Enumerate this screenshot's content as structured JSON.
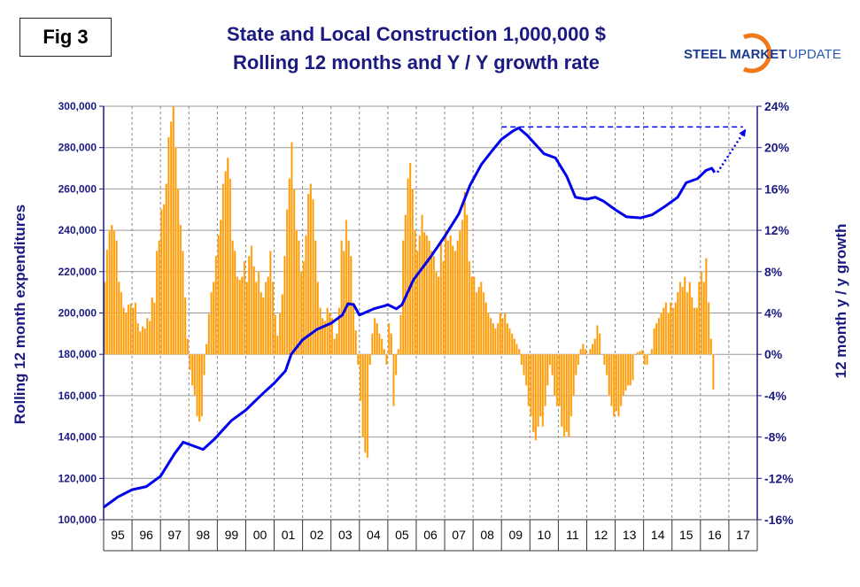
{
  "fig_label": "Fig 3",
  "logo_text": {
    "part1": "STEEL MARKET",
    "part2": "UPDATE"
  },
  "chart_data": {
    "type": "bar+line",
    "title": [
      "State and Local Construction 1,000,000 $",
      "Rolling 12 months and Y / Y growth rate"
    ],
    "ylabel_left": "Rolling 12 month expenditures",
    "ylabel_right": "12 month y / y growth",
    "ylim_left": [
      100000,
      300000
    ],
    "ylim_right": [
      -16,
      24
    ],
    "yticks_left": [
      "100,000",
      "120,000",
      "140,000",
      "160,000",
      "180,000",
      "200,000",
      "220,000",
      "240,000",
      "260,000",
      "280,000",
      "300,000"
    ],
    "yticks_right": [
      "-16%",
      "-12%",
      "-8%",
      "-4%",
      "0%",
      "4%",
      "8%",
      "12%",
      "16%",
      "20%",
      "24%"
    ],
    "xticks": [
      "95",
      "96",
      "97",
      "98",
      "99",
      "00",
      "01",
      "02",
      "03",
      "04",
      "05",
      "06",
      "07",
      "08",
      "09",
      "10",
      "11",
      "12",
      "13",
      "14",
      "15",
      "16",
      "17"
    ],
    "grid": true,
    "growth_series": {
      "name": "12 month y/y growth (%)",
      "start": "1995-01",
      "color": "#FF9900",
      "values": [
        7,
        10.1,
        12,
        12.5,
        12,
        11,
        7,
        6,
        4.5,
        4,
        4.8,
        4.9,
        4.5,
        5,
        3,
        2.2,
        2.7,
        2.5,
        3.5,
        3.2,
        5.5,
        5,
        10,
        11,
        14,
        14.5,
        16.5,
        21,
        22.5,
        24,
        20,
        16,
        12.5,
        10,
        5.5,
        1.5,
        -1.5,
        -3,
        -4,
        -6,
        -6.5,
        -6,
        -2,
        1,
        3.9,
        6,
        7,
        9.5,
        11.5,
        13,
        16.5,
        17.7,
        19,
        17,
        11,
        10,
        7.5,
        7.2,
        7.5,
        9,
        7,
        9.5,
        10.5,
        8.5,
        7,
        8,
        6,
        5.5,
        7,
        7.5,
        10,
        7,
        3.8,
        1.8,
        4,
        5.8,
        9.5,
        14,
        17,
        20.5,
        16,
        12,
        11,
        8,
        9,
        11.5,
        15.5,
        16.5,
        15,
        11,
        7,
        4.5,
        3.5,
        3.2,
        4.5,
        4,
        3.5,
        1.5,
        2,
        4.5,
        11,
        10,
        13,
        11,
        9.5,
        5,
        2.3,
        -1,
        -4.5,
        -8,
        -9.5,
        -10,
        -1,
        2,
        3.5,
        3,
        2,
        1.5,
        0.5,
        -1,
        3,
        2,
        -5,
        -2,
        0.5,
        3.8,
        11,
        13.5,
        17,
        18.5,
        16,
        12,
        10,
        11.5,
        13.5,
        11.8,
        11.5,
        11,
        10,
        9.5,
        8,
        7.5,
        11,
        9,
        12,
        11,
        11.5,
        10.5,
        10,
        11,
        12,
        13,
        15.7,
        13.5,
        9,
        7.5,
        7.5,
        6,
        6.5,
        7,
        6,
        5,
        4,
        3.5,
        3,
        2.5,
        3,
        4,
        3.5,
        4,
        3,
        2.5,
        2,
        1.5,
        1,
        0.5,
        -1,
        -2,
        -3,
        -5,
        -6,
        -7.5,
        -8.3,
        -7,
        -6,
        -7,
        -5,
        -3,
        -1,
        -2,
        -4,
        -5,
        -5,
        -7,
        -8,
        -7.5,
        -8,
        -6,
        -4,
        -2,
        -1,
        0.5,
        1,
        0.5,
        0,
        0.5,
        1,
        1.5,
        2.8,
        2,
        0,
        -1,
        -2,
        -4,
        -5,
        -6,
        -5.5,
        -6,
        -5,
        -4,
        -3.5,
        -3,
        -3,
        -2.5,
        0,
        0.2,
        0.3,
        0.4,
        -1,
        -1,
        0,
        0.5,
        2.5,
        3,
        3.5,
        4,
        4.5,
        5,
        4,
        5,
        4.5,
        5,
        6,
        7,
        6.5,
        7.5,
        6,
        7,
        5.5,
        4.5,
        4.5,
        7,
        8,
        7,
        9.3,
        5,
        1.5,
        -3.4
      ]
    },
    "rolling_series": {
      "name": "Rolling 12 months ($M)",
      "color": "#0000EE",
      "points": [
        [
          1995.0,
          106000
        ],
        [
          1995.5,
          111000
        ],
        [
          1996.0,
          114500
        ],
        [
          1996.5,
          116000
        ],
        [
          1997.0,
          121000
        ],
        [
          1997.5,
          132000
        ],
        [
          1997.8,
          137500
        ],
        [
          1998.3,
          135000
        ],
        [
          1998.5,
          134000
        ],
        [
          1998.9,
          139000
        ],
        [
          1999.5,
          148000
        ],
        [
          2000.0,
          153000
        ],
        [
          2000.6,
          161000
        ],
        [
          2001.0,
          166000
        ],
        [
          2001.4,
          172000
        ],
        [
          2001.6,
          180000
        ],
        [
          2002.0,
          187000
        ],
        [
          2002.5,
          192000
        ],
        [
          2003.0,
          195000
        ],
        [
          2003.4,
          199000
        ],
        [
          2003.6,
          204500
        ],
        [
          2003.8,
          204000
        ],
        [
          2004.0,
          199000
        ],
        [
          2004.5,
          202000
        ],
        [
          2004.9,
          203500
        ],
        [
          2005.0,
          204000
        ],
        [
          2005.3,
          202000
        ],
        [
          2005.5,
          204000
        ],
        [
          2005.9,
          216000
        ],
        [
          2006.5,
          227000
        ],
        [
          2007.0,
          237000
        ],
        [
          2007.5,
          248000
        ],
        [
          2007.9,
          262000
        ],
        [
          2008.3,
          272000
        ],
        [
          2008.7,
          279000
        ],
        [
          2009.0,
          284000
        ],
        [
          2009.4,
          288000
        ],
        [
          2009.6,
          289500
        ],
        [
          2009.9,
          286000
        ],
        [
          2010.5,
          277000
        ],
        [
          2010.9,
          275000
        ],
        [
          2011.3,
          266000
        ],
        [
          2011.6,
          256000
        ],
        [
          2012.0,
          255000
        ],
        [
          2012.3,
          256000
        ],
        [
          2012.6,
          254000
        ],
        [
          2013.0,
          250000
        ],
        [
          2013.4,
          246500
        ],
        [
          2013.9,
          246000
        ],
        [
          2014.3,
          247500
        ],
        [
          2014.8,
          252000
        ],
        [
          2015.2,
          256000
        ],
        [
          2015.5,
          263000
        ],
        [
          2015.9,
          265000
        ],
        [
          2016.2,
          269000
        ],
        [
          2016.4,
          270000
        ],
        [
          2016.5,
          268000
        ]
      ]
    },
    "annotations": {
      "target_level": 290000,
      "dashed_line_from": 2009.0,
      "dashed_line_to": 2017.5,
      "arrow_from": [
        2016.6,
        268000
      ],
      "arrow_to": [
        2017.6,
        289000
      ]
    }
  }
}
